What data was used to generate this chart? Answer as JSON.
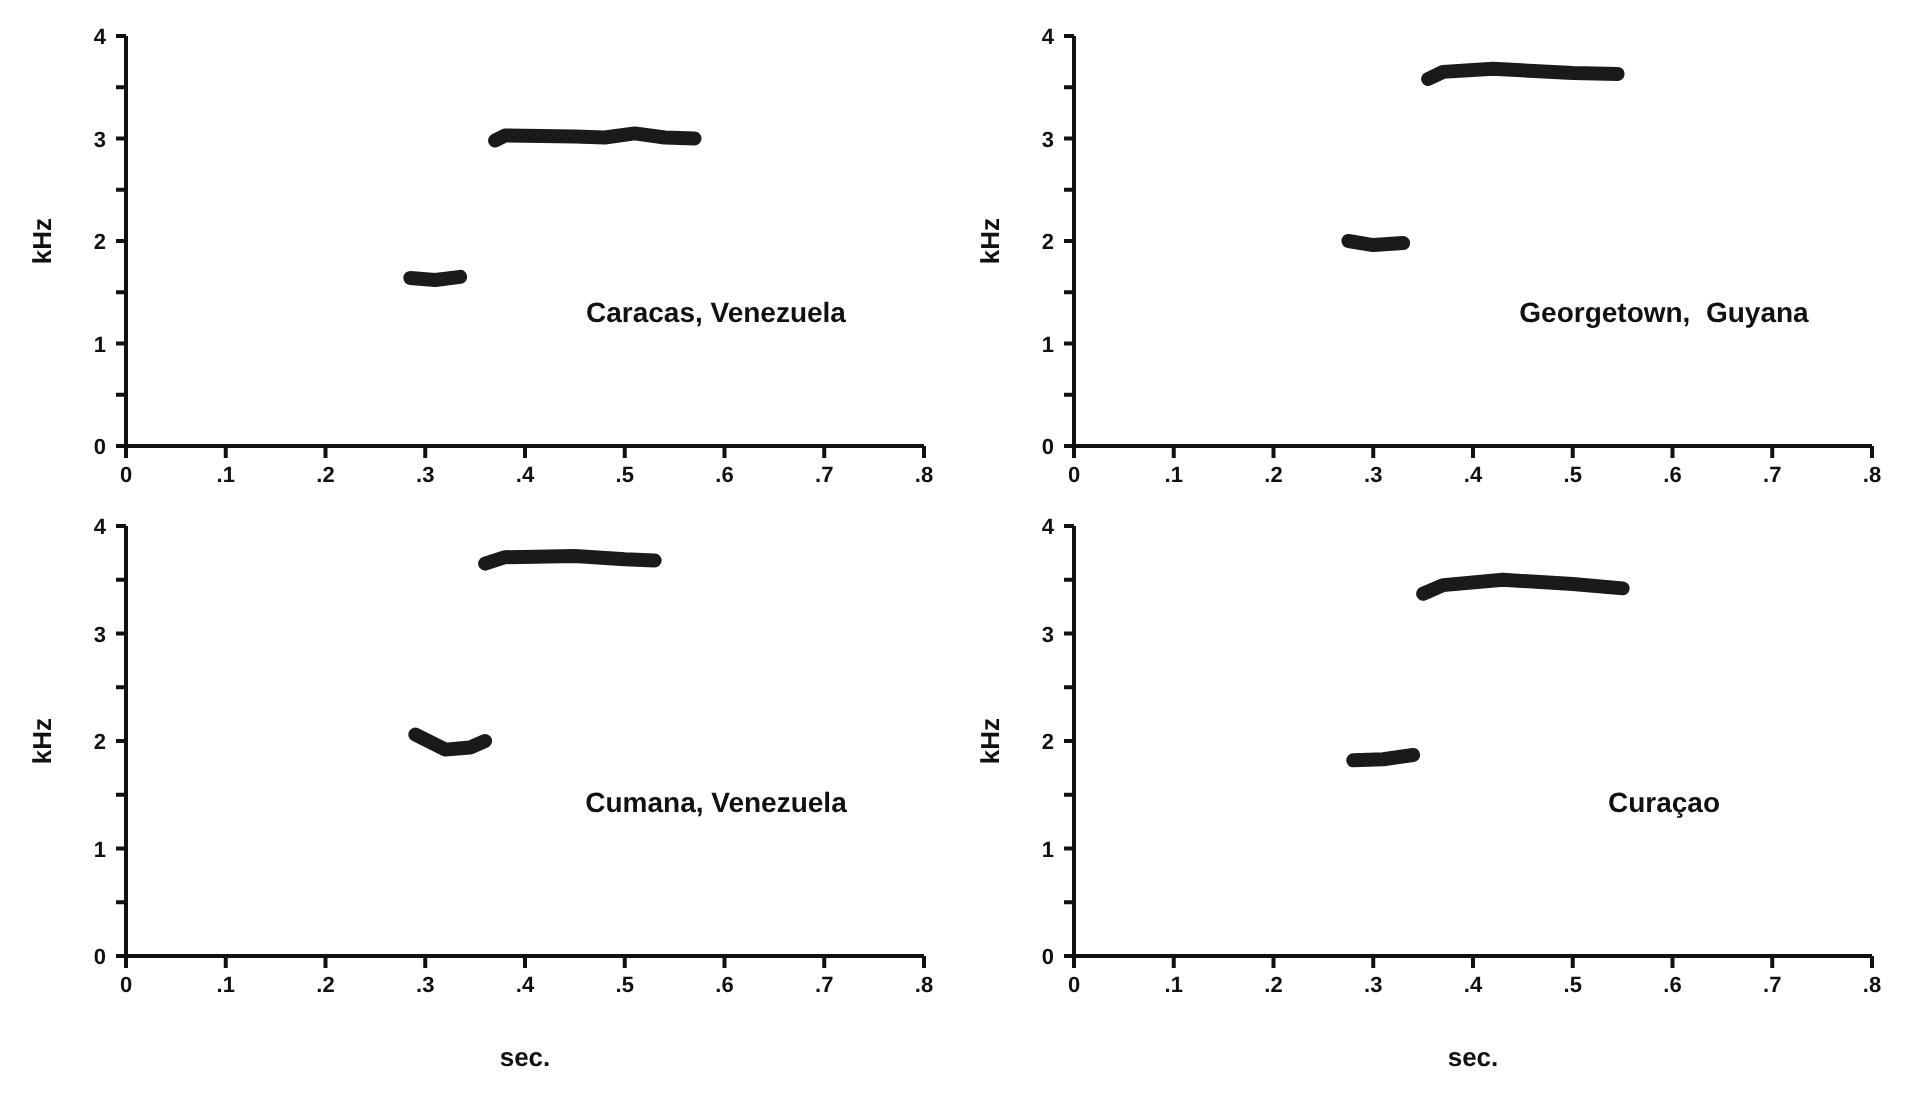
{
  "chart_data": [
    {
      "type": "line",
      "ylabel": "kHz",
      "annotations": [
        "Caracas, Venezuela"
      ],
      "xlim": [
        0,
        0.8
      ],
      "ylim": [
        0,
        4
      ],
      "xticks": [
        {
          "value": 0,
          "label": "0"
        },
        {
          "value": 0.1,
          "label": ".1"
        },
        {
          "value": 0.2,
          "label": ".2"
        },
        {
          "value": 0.3,
          "label": ".3"
        },
        {
          "value": 0.4,
          "label": ".4"
        },
        {
          "value": 0.5,
          "label": ".5"
        },
        {
          "value": 0.6,
          "label": ".6"
        },
        {
          "value": 0.7,
          "label": ".7"
        },
        {
          "value": 0.8,
          "label": ".8"
        }
      ],
      "yticks": [
        {
          "value": 0,
          "label": "0"
        },
        {
          "value": 0.5,
          "label": null
        },
        1,
        {
          "value": 1.5,
          "label": null
        },
        2,
        {
          "value": 2.5,
          "label": null
        },
        3,
        {
          "value": 3.5,
          "label": null
        },
        4
      ],
      "series": [
        {
          "color": "#1a1a1a",
          "x": [
            0.285,
            0.31,
            0.335
          ],
          "values": [
            1.64,
            1.62,
            1.65
          ]
        },
        {
          "color": "#1a1a1a",
          "x": [
            0.37,
            0.38,
            0.45,
            0.48,
            0.51,
            0.54,
            0.57
          ],
          "values": [
            2.98,
            3.03,
            3.02,
            3.01,
            3.05,
            3.01,
            3.0
          ]
        }
      ]
    },
    {
      "type": "line",
      "ylabel": "kHz",
      "annotations": [
        "Georgetown,  Guyana"
      ],
      "xlim": [
        0,
        0.8
      ],
      "ylim": [
        0,
        4
      ],
      "xticks": [
        {
          "value": 0,
          "label": "0"
        },
        {
          "value": 0.1,
          "label": ".1"
        },
        {
          "value": 0.2,
          "label": ".2"
        },
        {
          "value": 0.3,
          "label": ".3"
        },
        {
          "value": 0.4,
          "label": ".4"
        },
        {
          "value": 0.5,
          "label": ".5"
        },
        {
          "value": 0.6,
          "label": ".6"
        },
        {
          "value": 0.7,
          "label": ".7"
        },
        {
          "value": 0.8,
          "label": ".8"
        }
      ],
      "yticks": [
        {
          "value": 0,
          "label": "0"
        },
        {
          "value": 0.5,
          "label": null
        },
        1,
        {
          "value": 1.5,
          "label": null
        },
        2,
        {
          "value": 2.5,
          "label": null
        },
        3,
        {
          "value": 3.5,
          "label": null
        },
        4
      ],
      "series": [
        {
          "color": "#1a1a1a",
          "x": [
            0.275,
            0.3,
            0.33
          ],
          "values": [
            2.0,
            1.96,
            1.98
          ]
        },
        {
          "color": "#1a1a1a",
          "x": [
            0.355,
            0.37,
            0.42,
            0.5,
            0.545
          ],
          "values": [
            3.58,
            3.65,
            3.68,
            3.64,
            3.63
          ]
        }
      ]
    },
    {
      "type": "line",
      "xlabel": "sec.",
      "ylabel": "kHz",
      "annotations": [
        "Cumana, Venezuela"
      ],
      "xlim": [
        0,
        0.8
      ],
      "ylim": [
        0,
        4
      ],
      "xticks": [
        {
          "value": 0,
          "label": "0"
        },
        {
          "value": 0.1,
          "label": ".1"
        },
        {
          "value": 0.2,
          "label": ".2"
        },
        {
          "value": 0.3,
          "label": ".3"
        },
        {
          "value": 0.4,
          "label": ".4"
        },
        {
          "value": 0.5,
          "label": ".5"
        },
        {
          "value": 0.6,
          "label": ".6"
        },
        {
          "value": 0.7,
          "label": ".7"
        },
        {
          "value": 0.8,
          "label": ".8"
        }
      ],
      "yticks": [
        {
          "value": 0,
          "label": "0"
        },
        {
          "value": 0.5,
          "label": null
        },
        1,
        {
          "value": 1.5,
          "label": null
        },
        2,
        {
          "value": 2.5,
          "label": null
        },
        3,
        {
          "value": 3.5,
          "label": null
        },
        4
      ],
      "series": [
        {
          "color": "#1a1a1a",
          "x": [
            0.29,
            0.32,
            0.345,
            0.36
          ],
          "values": [
            2.06,
            1.92,
            1.94,
            2.0
          ]
        },
        {
          "color": "#1a1a1a",
          "x": [
            0.36,
            0.38,
            0.45,
            0.5,
            0.53
          ],
          "values": [
            3.65,
            3.71,
            3.72,
            3.69,
            3.68
          ]
        }
      ]
    },
    {
      "type": "line",
      "xlabel": "sec.",
      "ylabel": "kHz",
      "annotations": [
        "Curaçao"
      ],
      "xlim": [
        0,
        0.8
      ],
      "ylim": [
        0,
        4
      ],
      "xticks": [
        {
          "value": 0,
          "label": "0"
        },
        {
          "value": 0.1,
          "label": ".1"
        },
        {
          "value": 0.2,
          "label": ".2"
        },
        {
          "value": 0.3,
          "label": ".3"
        },
        {
          "value": 0.4,
          "label": ".4"
        },
        {
          "value": 0.5,
          "label": ".5"
        },
        {
          "value": 0.6,
          "label": ".6"
        },
        {
          "value": 0.7,
          "label": ".7"
        },
        {
          "value": 0.8,
          "label": ".8"
        }
      ],
      "yticks": [
        {
          "value": 0,
          "label": "0"
        },
        {
          "value": 0.5,
          "label": null
        },
        1,
        {
          "value": 1.5,
          "label": null
        },
        2,
        {
          "value": 2.5,
          "label": null
        },
        3,
        {
          "value": 3.5,
          "label": null
        },
        4
      ],
      "series": [
        {
          "color": "#1a1a1a",
          "x": [
            0.28,
            0.31,
            0.34
          ],
          "values": [
            1.82,
            1.83,
            1.87
          ]
        },
        {
          "color": "#1a1a1a",
          "x": [
            0.35,
            0.37,
            0.43,
            0.5,
            0.55
          ],
          "values": [
            3.37,
            3.45,
            3.5,
            3.46,
            3.42
          ]
        }
      ]
    }
  ]
}
